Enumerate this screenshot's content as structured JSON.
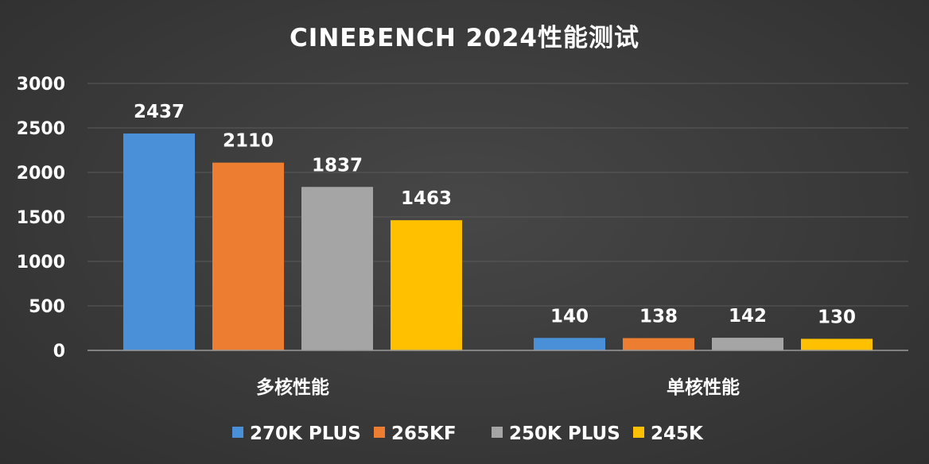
{
  "chart_data": {
    "type": "bar",
    "title": "CINEBENCH 2024性能测试",
    "categories": [
      "多核性能",
      "单核性能"
    ],
    "series": [
      {
        "name": "270K PLUS",
        "color": "#4a90d9",
        "values": [
          2437,
          140
        ]
      },
      {
        "name": "265KF",
        "color": "#ed7d31",
        "values": [
          2110,
          138
        ]
      },
      {
        "name": "250K PLUS",
        "color": "#a5a5a5",
        "values": [
          1837,
          142
        ]
      },
      {
        "name": "245K",
        "color": "#ffc000",
        "values": [
          1463,
          130
        ]
      }
    ],
    "ylim": [
      0,
      3000
    ],
    "yticks": [
      0,
      500,
      1000,
      1500,
      2000,
      2500,
      3000
    ],
    "grid": true,
    "legend": "bottom",
    "data_labels": true
  }
}
